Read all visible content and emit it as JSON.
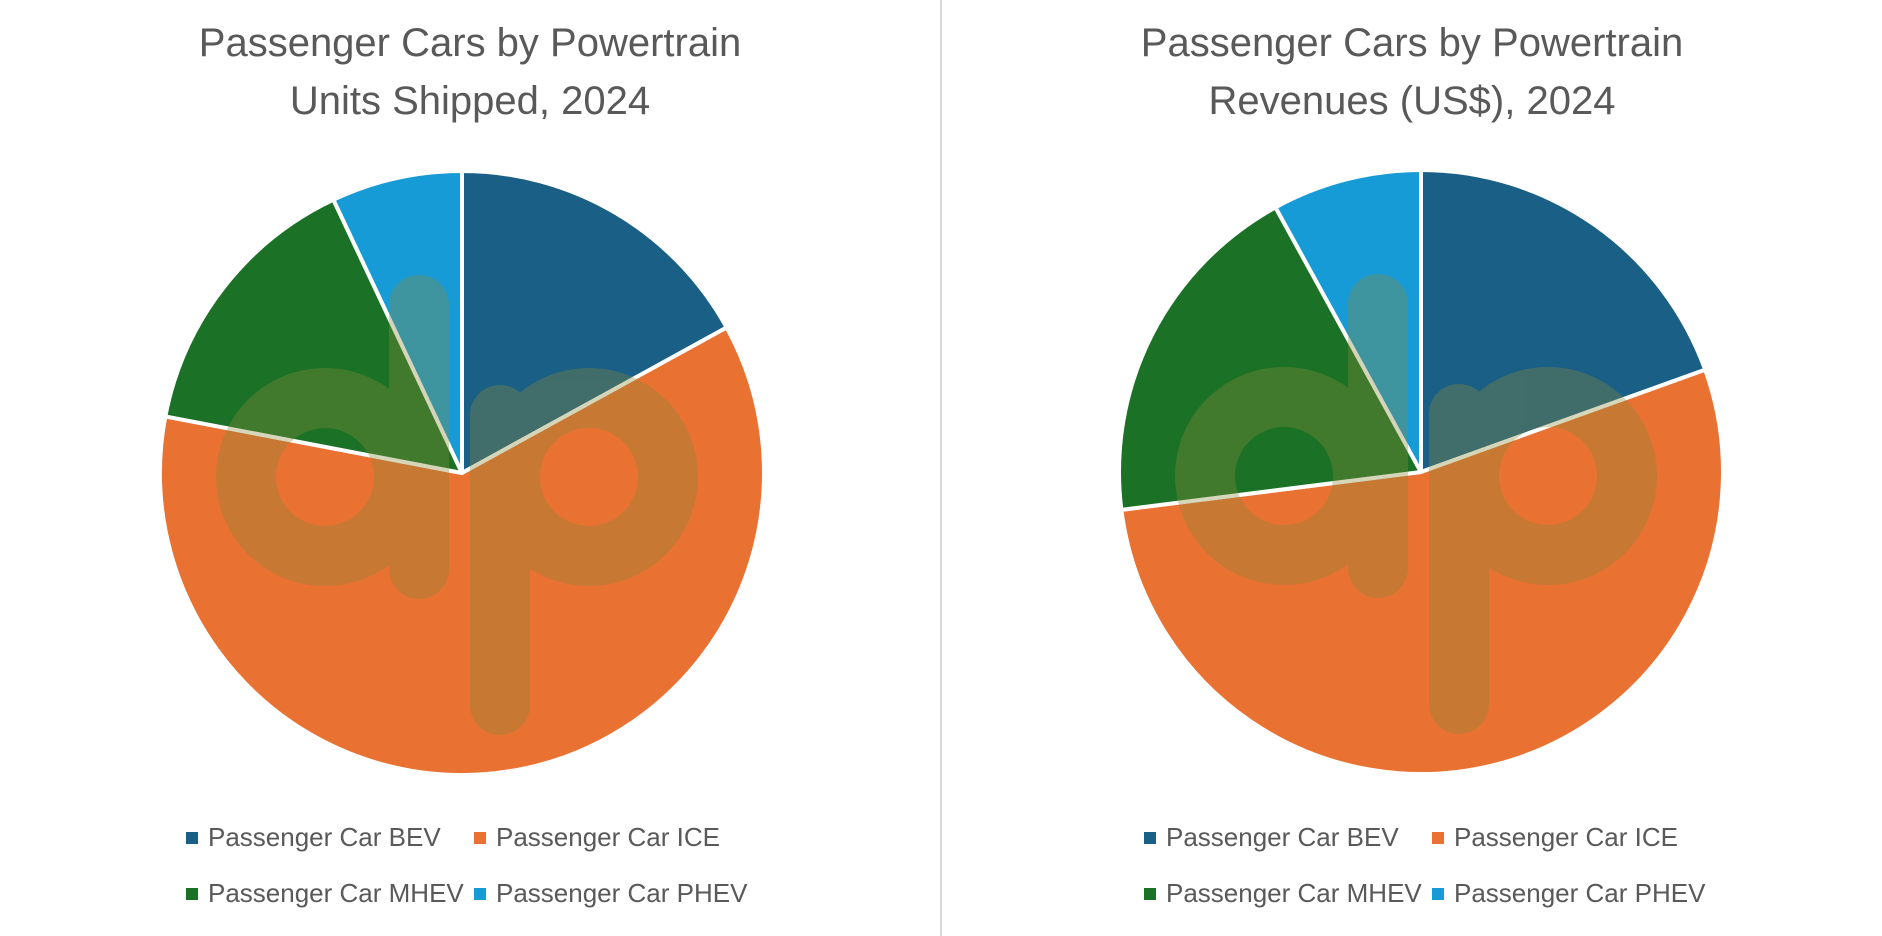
{
  "colors": {
    "bev": "#1a5f85",
    "ice": "#e97132",
    "mhev": "#1b7226",
    "phev": "#169bd6",
    "title_text": "#595959",
    "watermark": "#8a8a3a"
  },
  "chart_data": [
    {
      "type": "pie",
      "title": "Passenger Cars by Powertrain",
      "subtitle": "Units Shipped, 2024",
      "categories": [
        "Passenger Car BEV",
        "Passenger Car ICE",
        "Passenger Car MHEV",
        "Passenger Car PHEV"
      ],
      "values": [
        17,
        61,
        15,
        7
      ],
      "legend_position": "bottom"
    },
    {
      "type": "pie",
      "title": "Passenger Cars by Powertrain",
      "subtitle": "Revenues (US$), 2024",
      "categories": [
        "Passenger Car BEV",
        "Passenger Car ICE",
        "Passenger Car MHEV",
        "Passenger Car PHEV"
      ],
      "values": [
        19.5,
        53.5,
        19,
        8
      ],
      "legend_position": "bottom"
    }
  ]
}
